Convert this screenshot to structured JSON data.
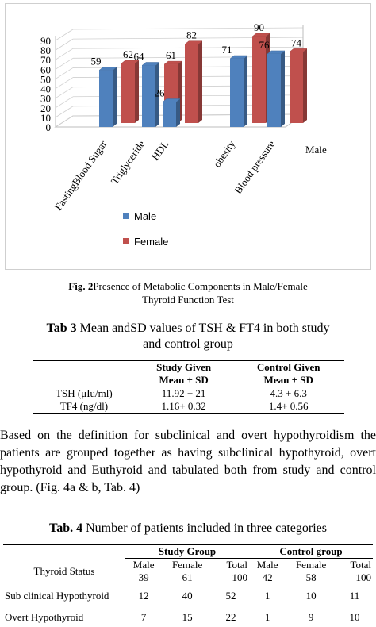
{
  "chart_data": {
    "type": "bar",
    "categories": [
      "FastingBlood Sugar",
      "Triglyceride",
      "HDL",
      "obesity",
      "Blood pressure"
    ],
    "series": [
      {
        "name": "Male",
        "values": [
          59,
          64,
          26,
          71,
          76
        ],
        "color": "#4F81BD"
      },
      {
        "name": "Female",
        "values": [
          62,
          61,
          82,
          90,
          74
        ],
        "color": "#C0504D"
      }
    ],
    "yticks": [
      "0",
      "10",
      "20",
      "30",
      "40",
      "50",
      "60",
      "70",
      "80",
      "90"
    ],
    "ylim": [
      0,
      90
    ],
    "depth_label": "Male",
    "legend": [
      "Male",
      "Female"
    ],
    "legend_position": "bottom-left",
    "style": "3d-bar"
  },
  "fig2": {
    "label": "Fig. 2",
    "text": "Presence of Metabolic Components in Male/Female",
    "line2": "Thyroid Function Test"
  },
  "tab3": {
    "label": "Tab 3",
    "title": " Mean  andSD values of TSH & FT4 in both study",
    "title2": "and  control group",
    "col1_line1": "Study Given",
    "col1_line2": "Mean + SD",
    "col2_line1": "Control Given",
    "col2_line2": "Mean +  SD",
    "rows": [
      {
        "label": "TSH (μIu/ml)",
        "study": "11.92 +  21",
        "control": "4.3 +  6.3"
      },
      {
        "label": "TF4 (ng/dl)",
        "study": "1.16+ 0.32",
        "control": "1.4+ 0.56"
      }
    ]
  },
  "paragraph": "Based on the definition for subclinical and overt hypothyroidism the patients are grouped together as having subclinical hypothyroid, overt hypothyroid and Euthyroid and tabulated both from study and control group.  (Fig. 4a & b, Tab. 4)",
  "tab4": {
    "label": "Tab. 4",
    "title": " Number of patients included in three  categories",
    "group1": "Study Group",
    "group2": "Control group",
    "row_header": "Thyroid Status",
    "cols": [
      "Male",
      "Female",
      "Total",
      "Male",
      "Female",
      "Total"
    ],
    "col_counts": [
      "39",
      "61",
      "100",
      "42",
      "58",
      "100"
    ],
    "rows": [
      {
        "label": "Sub clinical Hypothyroid",
        "values": [
          "12",
          "40",
          "52",
          "1",
          "10",
          "11"
        ]
      },
      {
        "label": "Overt Hypothyroid",
        "values": [
          "7",
          "15",
          "22",
          "1",
          "9",
          "10"
        ]
      }
    ]
  }
}
